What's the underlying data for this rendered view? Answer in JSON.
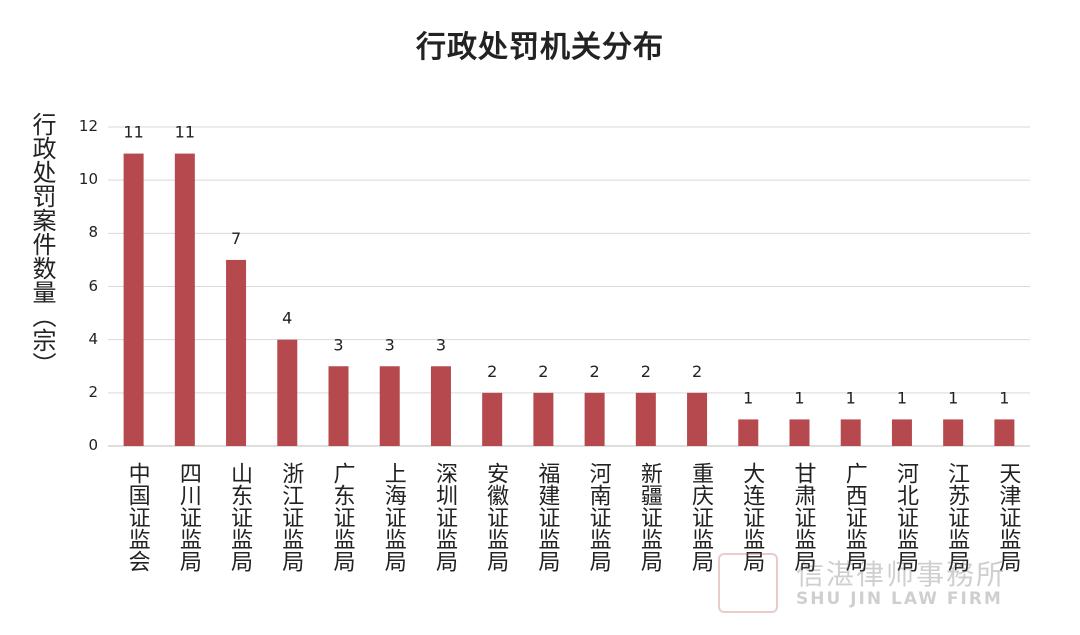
{
  "chart_data": {
    "type": "bar",
    "title": "行政处罚机关分布",
    "ylabel": "行政处罚案件数量（宗）",
    "xlabel": "",
    "ylim": [
      0,
      12
    ],
    "yticks": [
      "0",
      "2",
      "4",
      "6",
      "8",
      "10",
      "12"
    ],
    "grid": true,
    "categories": [
      "中国证监会",
      "四川证监局",
      "山东证监局",
      "浙江证监局",
      "广东证监局",
      "上海证监局",
      "深圳证监局",
      "安徽证监局",
      "福建证监局",
      "河南证监局",
      "新疆证监局",
      "重庆证监局",
      "大连证监局",
      "甘肃证监局",
      "广西证监局",
      "河北证监局",
      "江苏证监局",
      "天津证监局"
    ],
    "values": [
      11,
      11,
      7,
      4,
      3,
      3,
      3,
      2,
      2,
      2,
      2,
      2,
      1,
      1,
      1,
      1,
      1,
      1
    ],
    "bar_color": "#b5494d"
  },
  "watermark": {
    "text_cn": "信湛律师事務所",
    "text_en": "SHU JIN LAW FIRM"
  }
}
